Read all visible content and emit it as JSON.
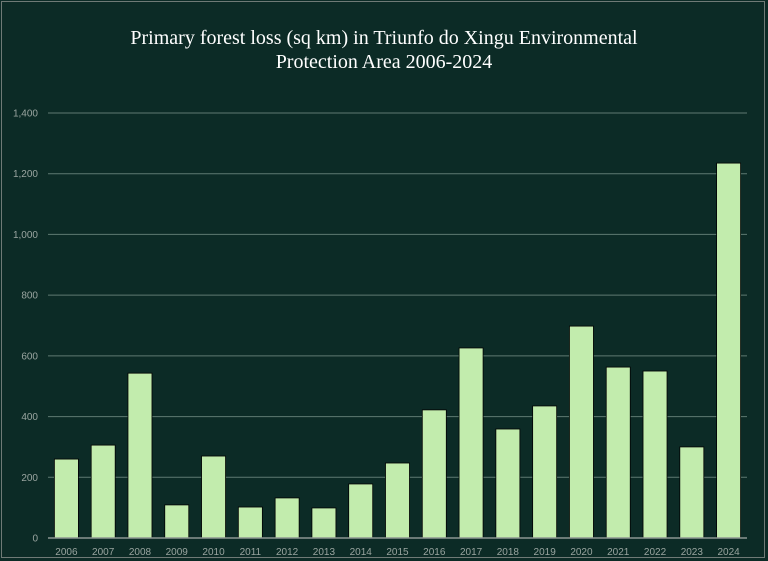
{
  "chart_data": {
    "type": "bar",
    "title_line1": "Primary forest loss (sq km) in Triunfo do Xingu Environmental",
    "title_line2": "Protection Area 2006-2024",
    "xlabel": "",
    "ylabel": "",
    "categories": [
      "2006",
      "2007",
      "2008",
      "2009",
      "2010",
      "2011",
      "2012",
      "2013",
      "2014",
      "2015",
      "2016",
      "2017",
      "2018",
      "2019",
      "2020",
      "2021",
      "2022",
      "2023",
      "2024"
    ],
    "values": [
      260,
      306,
      543,
      109,
      270,
      102,
      132,
      99,
      178,
      247,
      422,
      626,
      359,
      435,
      698,
      563,
      550,
      300,
      1235
    ],
    "ylim": [
      0,
      1400
    ],
    "yticks": [
      0,
      200,
      400,
      600,
      800,
      1000,
      1200,
      1400
    ],
    "ytick_labels": [
      "0",
      "200",
      "400",
      "600",
      "800",
      "1,000",
      "1,200",
      "1,400"
    ],
    "grid": true,
    "legend": "none",
    "colors": {
      "background": "#0c2b26",
      "bar": "#c2ecad",
      "grid": "#5f7a72",
      "text": "#9aa5a0",
      "title": "#ffffff"
    }
  }
}
